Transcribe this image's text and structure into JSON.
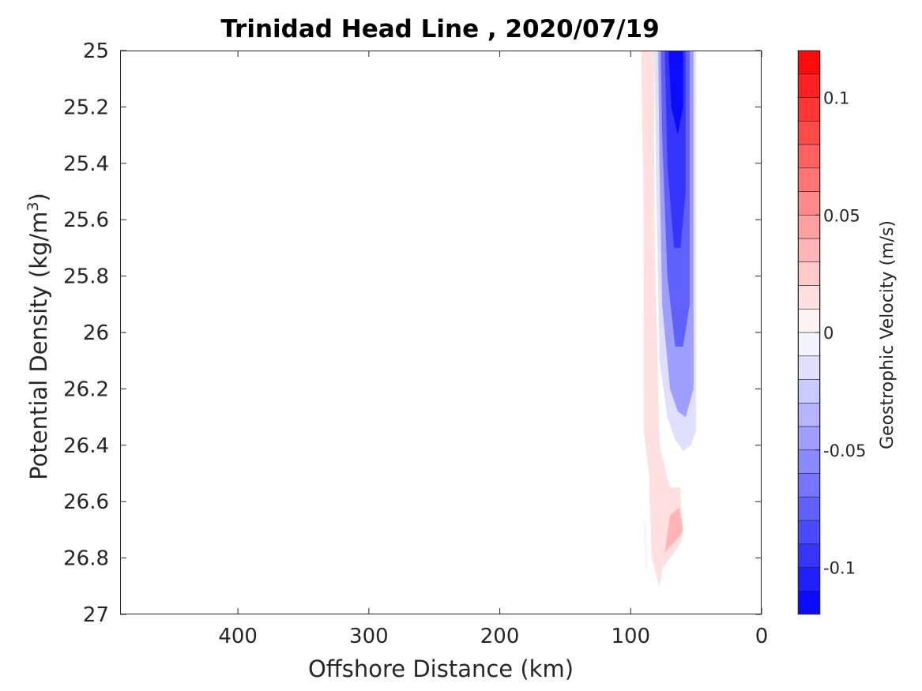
{
  "chart_data": {
    "type": "contourf",
    "title": "Trinidad Head Line , 2020/07/19",
    "xlabel": "Offshore Distance (km)",
    "ylabel_main": "Potential Density (kg/m",
    "ylabel_sup": "3",
    "ylabel_close": ")",
    "xlim": [
      490,
      0
    ],
    "ylim": [
      25,
      27
    ],
    "y_reversed": true,
    "x_reversed": true,
    "xticks": [
      400,
      300,
      200,
      100,
      0
    ],
    "xtick_labels": [
      "400",
      "300",
      "200",
      "100",
      "0"
    ],
    "yticks": [
      25,
      25.2,
      25.4,
      25.6,
      25.8,
      26,
      26.2,
      26.4,
      26.6,
      26.8,
      27
    ],
    "ytick_labels": [
      "25",
      "25.2",
      "25.4",
      "25.6",
      "25.8",
      "26",
      "26.2",
      "26.4",
      "26.6",
      "26.8",
      "27"
    ],
    "colorbar": {
      "label": "Geostrophic Velocity (m/s)",
      "clim": [
        -0.12,
        0.12
      ],
      "levels": 24,
      "ticks": [
        0.1,
        0.05,
        0,
        -0.05,
        -0.1
      ],
      "tick_labels": [
        "0.1",
        "0.05",
        "0",
        "-0.05",
        "-0.1"
      ],
      "low_color": "#0000ff",
      "mid_color": "#ffffff",
      "high_color": "#ff0000"
    },
    "regions": [
      {
        "name": "weak-positive-band",
        "value": 0.01,
        "points": [
          [
            92,
            25
          ],
          [
            82,
            25
          ],
          [
            82,
            25.6
          ],
          [
            80,
            26.0
          ],
          [
            78,
            26.4
          ],
          [
            70,
            26.55
          ],
          [
            62,
            26.55
          ],
          [
            62,
            26.6
          ],
          [
            70,
            26.68
          ],
          [
            78,
            26.9
          ],
          [
            84,
            26.8
          ],
          [
            86,
            26.5
          ],
          [
            90,
            26.35
          ],
          [
            90,
            25.6
          ]
        ]
      },
      {
        "name": "positive-near-surface",
        "value": 0.02,
        "points": [
          [
            90,
            25
          ],
          [
            84,
            25
          ],
          [
            84,
            25.8
          ],
          [
            88,
            26.1
          ],
          [
            90,
            26.2
          ]
        ]
      },
      {
        "name": "positive-deep-lobe",
        "value": 0.02,
        "points": [
          [
            78,
            26.85
          ],
          [
            74,
            26.7
          ],
          [
            70,
            26.62
          ],
          [
            62,
            26.58
          ],
          [
            60,
            26.7
          ],
          [
            62,
            26.75
          ],
          [
            70,
            26.8
          ]
        ]
      },
      {
        "name": "positive-deep-core",
        "value": 0.03,
        "points": [
          [
            74,
            26.78
          ],
          [
            70,
            26.65
          ],
          [
            63,
            26.62
          ],
          [
            60,
            26.7
          ],
          [
            62,
            26.72
          ],
          [
            70,
            26.76
          ]
        ]
      },
      {
        "name": "negative-jet-outer",
        "value": -0.015,
        "points": [
          [
            82,
            25
          ],
          [
            50,
            25
          ],
          [
            50,
            26.35
          ],
          [
            54,
            26.4
          ],
          [
            60,
            26.42
          ],
          [
            66,
            26.38
          ],
          [
            72,
            26.3
          ],
          [
            78,
            26.1
          ],
          [
            80,
            25.6
          ]
        ]
      },
      {
        "name": "negative-jet-mid",
        "value": -0.04,
        "points": [
          [
            79,
            25
          ],
          [
            52,
            25
          ],
          [
            52,
            26.2
          ],
          [
            58,
            26.3
          ],
          [
            64,
            26.28
          ],
          [
            70,
            26.2
          ],
          [
            76,
            25.9
          ],
          [
            78,
            25.4
          ]
        ]
      },
      {
        "name": "negative-jet-inner",
        "value": -0.07,
        "points": [
          [
            77,
            25
          ],
          [
            55,
            25
          ],
          [
            55,
            25.9
          ],
          [
            60,
            26.05
          ],
          [
            66,
            26.05
          ],
          [
            72,
            25.8
          ],
          [
            76,
            25.3
          ]
        ]
      },
      {
        "name": "negative-jet-core",
        "value": -0.095,
        "points": [
          [
            74,
            25
          ],
          [
            58,
            25
          ],
          [
            58,
            25.5
          ],
          [
            62,
            25.7
          ],
          [
            67,
            25.7
          ],
          [
            72,
            25.4
          ]
        ]
      },
      {
        "name": "negative-jet-max",
        "value": -0.11,
        "points": [
          [
            71,
            25
          ],
          [
            60,
            25
          ],
          [
            60,
            25.2
          ],
          [
            64,
            25.3
          ],
          [
            69,
            25.2
          ]
        ]
      },
      {
        "name": "negative-deep-blip",
        "value": -0.01,
        "points": [
          [
            90,
            26.67
          ],
          [
            88,
            26.67
          ],
          [
            87,
            26.84
          ],
          [
            89,
            26.84
          ]
        ]
      }
    ]
  }
}
